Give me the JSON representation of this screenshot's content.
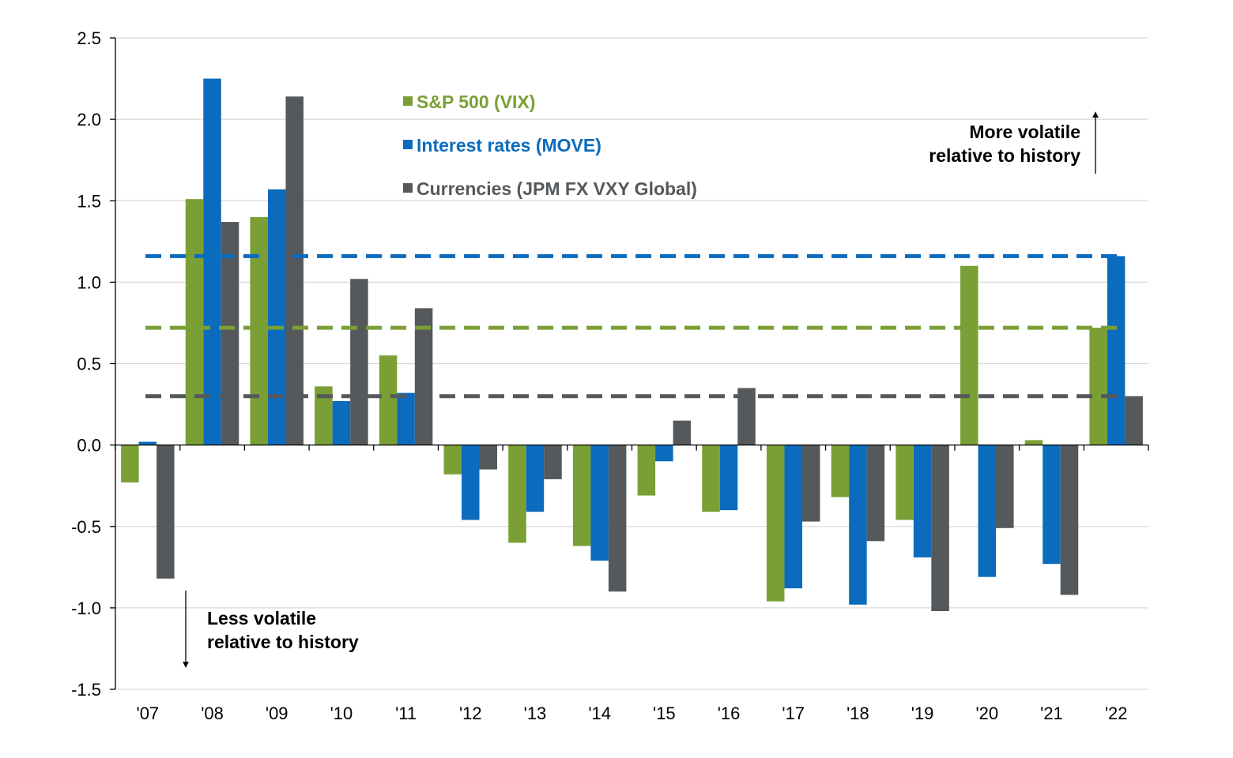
{
  "chart_data": {
    "type": "bar",
    "categories": [
      "'07",
      "'08",
      "'09",
      "'10",
      "'11",
      "'12",
      "'13",
      "'14",
      "'15",
      "'16",
      "'17",
      "'18",
      "'19",
      "'20",
      "'21",
      "'22"
    ],
    "series": [
      {
        "name": "S&P 500 (VIX)",
        "color": "#7a9f35",
        "values": [
          -0.23,
          1.51,
          1.4,
          0.36,
          0.55,
          -0.18,
          -0.6,
          -0.62,
          -0.31,
          -0.41,
          -0.96,
          -0.32,
          -0.46,
          1.1,
          0.03,
          0.72
        ]
      },
      {
        "name": "Interest rates (MOVE)",
        "color": "#0b6bbd",
        "values": [
          0.02,
          2.25,
          1.57,
          0.27,
          0.32,
          -0.46,
          -0.41,
          -0.71,
          -0.1,
          -0.4,
          -0.88,
          -0.98,
          -0.69,
          -0.81,
          -0.73,
          1.16
        ]
      },
      {
        "name": "Currencies (JPM FX VXY Global)",
        "color": "#55595c",
        "values": [
          -0.82,
          1.37,
          2.14,
          1.02,
          0.84,
          -0.15,
          -0.21,
          -0.9,
          0.15,
          0.35,
          -0.47,
          -0.59,
          -1.02,
          -0.51,
          -0.92,
          0.3
        ]
      }
    ],
    "reference_lines": [
      {
        "series": "Interest rates (MOVE)",
        "value": 1.16,
        "color": "#0b6bbd",
        "style": "dashed"
      },
      {
        "series": "S&P 500 (VIX)",
        "value": 0.72,
        "color": "#7a9f35",
        "style": "dashed"
      },
      {
        "series": "Currencies (JPM FX VXY Global)",
        "value": 0.3,
        "color": "#55595c",
        "style": "dashed"
      }
    ],
    "y_ticks": [
      "2.5",
      "2.0",
      "1.5",
      "1.0",
      "0.5",
      "0.0",
      "-0.5",
      "-1.0",
      "-1.5"
    ],
    "ylim": [
      -1.5,
      2.5
    ],
    "grid": true,
    "legend_position": "top-left-inside",
    "annotations": [
      {
        "text_lines": [
          "More volatile",
          "relative to history"
        ],
        "arrow": "up",
        "position": "top-right"
      },
      {
        "text_lines": [
          "Less volatile",
          "relative to history"
        ],
        "arrow": "down",
        "position": "bottom-left"
      }
    ]
  }
}
